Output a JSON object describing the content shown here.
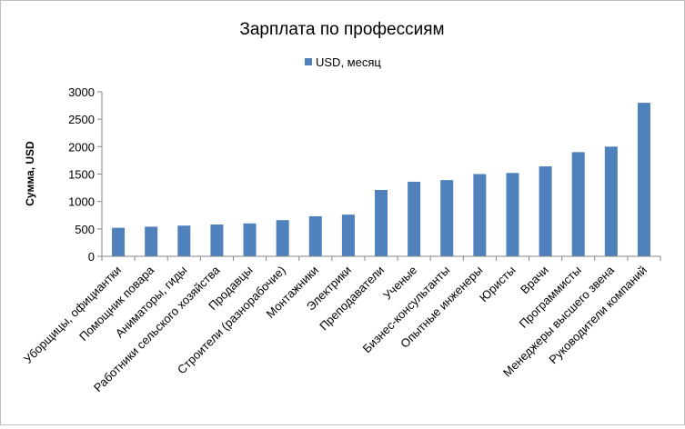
{
  "chart_data": {
    "type": "bar",
    "title": "Зарплата по профессиям",
    "ylabel": "Сумма, USD",
    "xlabel": "",
    "legend_position": "top",
    "ylim": [
      0,
      3000
    ],
    "yticks": [
      "0",
      "500",
      "1000",
      "1500",
      "2000",
      "2500",
      "3000"
    ],
    "bar_color": "#4F81BD",
    "grid": false,
    "categories": [
      "Уборщицы, официантки",
      "Помощник повара",
      "Аниматоры, гиды",
      "Работники сельского хозяйства",
      "Продавцы",
      "Строители (разнорабочие)",
      "Монтажники",
      "Электрики",
      "Преподаватели",
      "Ученые",
      "Бизнес-консультанты",
      "Опытные инженеры",
      "Юристы",
      "Врачи",
      "Программисты",
      "Менеджеры высшего звена",
      "Руководители компаний"
    ],
    "series": [
      {
        "name": "USD, месяц",
        "values": [
          520,
          540,
          560,
          580,
          600,
          660,
          730,
          760,
          1210,
          1360,
          1390,
          1500,
          1520,
          1640,
          1900,
          2000,
          2800
        ]
      }
    ]
  }
}
